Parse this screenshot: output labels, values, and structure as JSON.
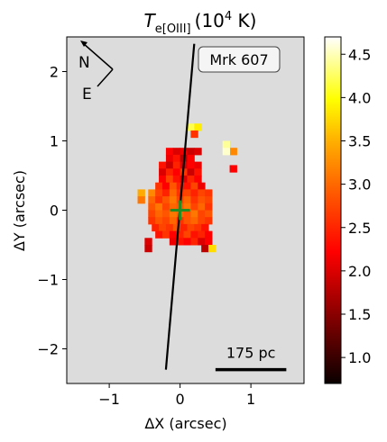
{
  "chart_data": {
    "type": "heatmap",
    "title_main": "T",
    "title_sub": "e[OIII]",
    "title_unit": "(10",
    "title_exp": "4",
    "title_tail": " K)",
    "xlabel": "ΔX (arcsec)",
    "ylabel": "ΔY (arcsec)",
    "xlim": [
      -1.6,
      1.75
    ],
    "ylim": [
      -2.5,
      2.5
    ],
    "xticks": [
      -1,
      0,
      1
    ],
    "yticks": [
      -2,
      -1,
      0,
      1,
      2
    ],
    "xtick_labels": [
      "−1",
      "0",
      "1"
    ],
    "ytick_labels": [
      "−2",
      "−1",
      "0",
      "1",
      "2"
    ],
    "background_color": "#dcdcdc",
    "colorbar": {
      "colormap": "hot",
      "range": [
        0.7,
        4.7
      ],
      "ticks": [
        1.0,
        1.5,
        2.0,
        2.5,
        3.0,
        3.5,
        4.0,
        4.5
      ],
      "tick_labels": [
        "1.0",
        "1.5",
        "2.0",
        "2.5",
        "3.0",
        "3.5",
        "4.0",
        "4.5"
      ]
    },
    "galaxy_label": "Mrk 607",
    "compass": {
      "north": "N",
      "east": "E"
    },
    "scale_bar": {
      "label": "175 pc",
      "x_start": 0.5,
      "x_end": 1.5,
      "y": -2.3
    },
    "slit_line": {
      "x1": 0.2,
      "y1": 2.4,
      "x2": -0.2,
      "y2": -2.3
    },
    "center_marker": {
      "x": 0,
      "y": 0,
      "color": "#228b22"
    },
    "map_pixels_note": "",
    "pixels": [
      [
        -0.15,
        0.85,
        2.2
      ],
      [
        -0.05,
        0.85,
        2.0
      ],
      [
        0.05,
        0.85,
        2.1
      ],
      [
        0.15,
        0.85,
        1.9
      ],
      [
        0.25,
        0.85,
        2.0
      ],
      [
        -0.15,
        0.75,
        2.1
      ],
      [
        -0.05,
        0.75,
        2.3
      ],
      [
        0.05,
        0.75,
        1.8
      ],
      [
        0.15,
        0.75,
        2.2
      ],
      [
        -0.25,
        0.65,
        2.3
      ],
      [
        -0.15,
        0.65,
        1.9
      ],
      [
        -0.05,
        0.65,
        2.4
      ],
      [
        0.05,
        0.65,
        2.0
      ],
      [
        0.15,
        0.65,
        2.2
      ],
      [
        0.25,
        0.65,
        2.1
      ],
      [
        -0.25,
        0.55,
        2.0
      ],
      [
        -0.15,
        0.55,
        2.4
      ],
      [
        -0.05,
        0.55,
        2.2
      ],
      [
        0.05,
        0.55,
        2.5
      ],
      [
        0.15,
        0.55,
        1.9
      ],
      [
        0.25,
        0.55,
        2.3
      ],
      [
        -0.25,
        0.45,
        2.2
      ],
      [
        -0.15,
        0.45,
        2.6
      ],
      [
        -0.05,
        0.45,
        2.3
      ],
      [
        0.05,
        0.45,
        2.0
      ],
      [
        0.15,
        0.45,
        2.4
      ],
      [
        0.25,
        0.45,
        2.2
      ],
      [
        -0.3,
        0.35,
        2.5
      ],
      [
        -0.2,
        0.35,
        2.2
      ],
      [
        -0.1,
        0.35,
        2.7
      ],
      [
        0.0,
        0.35,
        2.4
      ],
      [
        0.1,
        0.35,
        2.3
      ],
      [
        0.2,
        0.35,
        2.6
      ],
      [
        0.3,
        0.35,
        2.1
      ],
      [
        -0.4,
        0.25,
        3.0
      ],
      [
        -0.3,
        0.25,
        2.6
      ],
      [
        -0.2,
        0.25,
        2.4
      ],
      [
        -0.1,
        0.25,
        2.8
      ],
      [
        0.0,
        0.25,
        2.5
      ],
      [
        0.1,
        0.25,
        2.6
      ],
      [
        0.2,
        0.25,
        2.4
      ],
      [
        0.3,
        0.25,
        2.6
      ],
      [
        0.4,
        0.25,
        2.5
      ],
      [
        -0.4,
        0.15,
        2.8
      ],
      [
        -0.3,
        0.15,
        2.5
      ],
      [
        -0.2,
        0.15,
        2.7
      ],
      [
        -0.1,
        0.15,
        2.9
      ],
      [
        0.0,
        0.15,
        2.6
      ],
      [
        0.1,
        0.15,
        2.8
      ],
      [
        0.2,
        0.15,
        2.5
      ],
      [
        0.3,
        0.15,
        2.7
      ],
      [
        0.4,
        0.15,
        2.6
      ],
      [
        -0.4,
        0.05,
        2.7
      ],
      [
        -0.3,
        0.05,
        2.9
      ],
      [
        -0.2,
        0.05,
        2.6
      ],
      [
        -0.1,
        0.05,
        2.8
      ],
      [
        0.0,
        0.05,
        2.7
      ],
      [
        0.1,
        0.05,
        2.9
      ],
      [
        0.2,
        0.05,
        2.6
      ],
      [
        0.3,
        0.05,
        2.8
      ],
      [
        0.4,
        0.05,
        2.5
      ],
      [
        -0.4,
        -0.05,
        2.6
      ],
      [
        -0.3,
        -0.05,
        2.8
      ],
      [
        -0.2,
        -0.05,
        2.7
      ],
      [
        -0.1,
        -0.05,
        2.9
      ],
      [
        0.0,
        -0.05,
        2.8
      ],
      [
        0.1,
        -0.05,
        2.7
      ],
      [
        0.2,
        -0.05,
        2.9
      ],
      [
        0.3,
        -0.05,
        2.6
      ],
      [
        0.4,
        -0.05,
        2.7
      ],
      [
        -0.4,
        -0.15,
        2.5
      ],
      [
        -0.3,
        -0.15,
        2.7
      ],
      [
        -0.2,
        -0.15,
        2.6
      ],
      [
        -0.1,
        -0.15,
        2.8
      ],
      [
        0.0,
        -0.15,
        2.5
      ],
      [
        0.1,
        -0.15,
        2.7
      ],
      [
        0.2,
        -0.15,
        2.8
      ],
      [
        0.3,
        -0.15,
        2.6
      ],
      [
        0.4,
        -0.15,
        2.5
      ],
      [
        -0.35,
        -0.25,
        2.4
      ],
      [
        -0.25,
        -0.25,
        2.6
      ],
      [
        -0.15,
        -0.25,
        2.5
      ],
      [
        -0.05,
        -0.25,
        2.7
      ],
      [
        0.05,
        -0.25,
        2.4
      ],
      [
        0.15,
        -0.25,
        2.6
      ],
      [
        0.25,
        -0.25,
        2.5
      ],
      [
        0.35,
        -0.25,
        2.3
      ],
      [
        -0.3,
        -0.35,
        2.3
      ],
      [
        -0.2,
        -0.35,
        2.5
      ],
      [
        -0.1,
        -0.35,
        2.2
      ],
      [
        0.0,
        -0.35,
        2.4
      ],
      [
        0.1,
        -0.35,
        2.6
      ],
      [
        0.2,
        -0.35,
        2.3
      ],
      [
        0.3,
        -0.35,
        2.4
      ],
      [
        0.4,
        -0.35,
        2.2
      ],
      [
        -0.1,
        -0.45,
        2.1
      ],
      [
        0.0,
        -0.45,
        2.3
      ],
      [
        0.1,
        -0.45,
        2.2
      ],
      [
        0.2,
        -0.45,
        2.4
      ],
      [
        0.3,
        -0.45,
        2.0
      ],
      [
        0.4,
        -0.45,
        2.2
      ],
      [
        0.35,
        -0.55,
        1.8
      ],
      [
        0.45,
        -0.55,
        3.5
      ],
      [
        -0.45,
        -0.45,
        2.0
      ],
      [
        -0.45,
        -0.55,
        1.9
      ],
      [
        -0.55,
        0.25,
        3.2
      ],
      [
        -0.55,
        0.15,
        2.9
      ],
      [
        0.15,
        1.2,
        4.0
      ],
      [
        0.25,
        1.2,
        3.6
      ],
      [
        0.2,
        1.1,
        2.5
      ],
      [
        0.65,
        0.95,
        4.3
      ],
      [
        0.75,
        0.85,
        3.0
      ],
      [
        0.65,
        0.85,
        4.5
      ],
      [
        0.75,
        0.6,
        2.2
      ]
    ]
  }
}
